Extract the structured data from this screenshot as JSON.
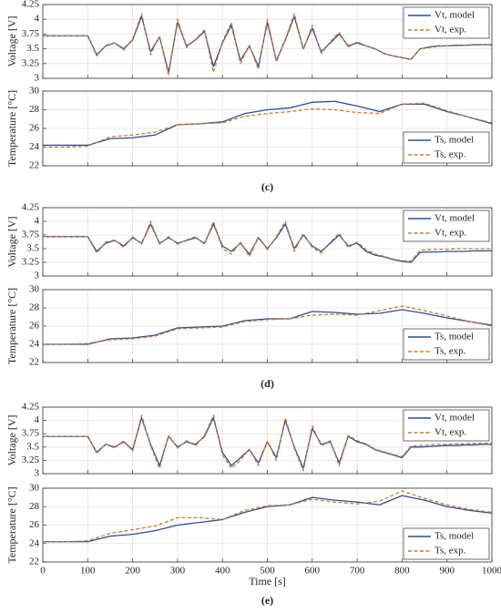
{
  "chart_data": [
    {
      "type": "line",
      "ylabel": "Voltage [V]",
      "ylim": [
        3,
        4.25
      ],
      "yticks": [
        3,
        3.25,
        3.5,
        3.75,
        4,
        4.25
      ],
      "xlim": [
        0,
        1000
      ],
      "xticks": [
        0,
        100,
        200,
        300,
        400,
        500,
        600,
        700,
        800,
        900,
        1000
      ],
      "grid": true,
      "legend": "upper right",
      "x": [
        0,
        20,
        40,
        60,
        80,
        100,
        120,
        140,
        160,
        180,
        200,
        220,
        240,
        260,
        280,
        300,
        320,
        340,
        360,
        380,
        400,
        420,
        440,
        460,
        480,
        500,
        520,
        540,
        560,
        580,
        600,
        620,
        640,
        660,
        680,
        700,
        720,
        740,
        760,
        780,
        800,
        820,
        840,
        860,
        880,
        900,
        920,
        940,
        960,
        980,
        1000
      ],
      "series": [
        {
          "name": "Vt, model",
          "color": "#2b4d9b",
          "style": "solid",
          "values": [
            3.72,
            3.72,
            3.72,
            3.72,
            3.72,
            3.72,
            3.4,
            3.55,
            3.6,
            3.5,
            3.65,
            4.05,
            3.45,
            3.7,
            3.1,
            3.95,
            3.55,
            3.65,
            3.8,
            3.2,
            3.6,
            3.9,
            3.3,
            3.55,
            3.2,
            3.95,
            3.3,
            3.65,
            4.05,
            3.5,
            3.85,
            3.45,
            3.6,
            3.75,
            3.55,
            3.6,
            3.55,
            3.5,
            3.42,
            3.38,
            3.35,
            3.32,
            3.5,
            3.53,
            3.55,
            3.55,
            3.56,
            3.56,
            3.57,
            3.57,
            3.57
          ]
        },
        {
          "name": "Vt, exp.",
          "color": "#d07a2a",
          "style": "dashed",
          "values": [
            3.72,
            3.72,
            3.72,
            3.72,
            3.72,
            3.72,
            3.38,
            3.56,
            3.6,
            3.48,
            3.66,
            4.1,
            3.4,
            3.72,
            3.05,
            4.0,
            3.52,
            3.66,
            3.82,
            3.1,
            3.62,
            3.95,
            3.25,
            3.56,
            3.15,
            4.0,
            3.28,
            3.66,
            4.1,
            3.48,
            3.9,
            3.42,
            3.62,
            3.78,
            3.53,
            3.62,
            3.55,
            3.5,
            3.42,
            3.38,
            3.35,
            3.32,
            3.5,
            3.52,
            3.54,
            3.55,
            3.55,
            3.56,
            3.56,
            3.57,
            3.57
          ]
        }
      ]
    },
    {
      "type": "line",
      "ylabel": "Temperature [°C]",
      "caption": "(c)",
      "ylim": [
        22,
        30
      ],
      "yticks": [
        22,
        24,
        26,
        28,
        30
      ],
      "xlim": [
        0,
        1000
      ],
      "xticks": [
        0,
        100,
        200,
        300,
        400,
        500,
        600,
        700,
        800,
        900,
        1000
      ],
      "grid": true,
      "legend": "lower right",
      "x": [
        0,
        50,
        100,
        150,
        200,
        250,
        300,
        350,
        400,
        450,
        500,
        550,
        600,
        650,
        700,
        750,
        800,
        850,
        900,
        950,
        1000
      ],
      "series": [
        {
          "name": "Ts, model",
          "color": "#2b4d9b",
          "style": "solid",
          "values": [
            24.2,
            24.2,
            24.2,
            24.9,
            25.0,
            25.3,
            26.4,
            26.5,
            26.7,
            27.6,
            28.0,
            28.2,
            28.8,
            28.9,
            28.4,
            27.8,
            28.6,
            28.6,
            27.8,
            27.2,
            26.5
          ]
        },
        {
          "name": "Ts, exp.",
          "color": "#d07a2a",
          "style": "dashed",
          "values": [
            24.0,
            24.0,
            24.1,
            25.1,
            25.3,
            25.6,
            26.4,
            26.5,
            26.6,
            27.3,
            27.6,
            27.8,
            28.1,
            28.0,
            27.7,
            27.6,
            28.6,
            28.7,
            27.9,
            27.2,
            26.6
          ]
        }
      ]
    },
    {
      "type": "line",
      "ylabel": "Voltage [V]",
      "ylim": [
        3,
        4.25
      ],
      "yticks": [
        3,
        3.25,
        3.5,
        3.75,
        4,
        4.25
      ],
      "xlim": [
        0,
        1000
      ],
      "xticks": [
        0,
        100,
        200,
        300,
        400,
        500,
        600,
        700,
        800,
        900,
        1000
      ],
      "grid": true,
      "legend": "upper right",
      "x": [
        0,
        20,
        40,
        60,
        80,
        100,
        120,
        140,
        160,
        180,
        200,
        220,
        240,
        260,
        280,
        300,
        320,
        340,
        360,
        380,
        400,
        420,
        440,
        460,
        480,
        500,
        520,
        540,
        560,
        580,
        600,
        620,
        640,
        660,
        680,
        700,
        720,
        740,
        760,
        780,
        800,
        820,
        840,
        860,
        880,
        900,
        920,
        940,
        960,
        980,
        1000
      ],
      "series": [
        {
          "name": "Vt, model",
          "color": "#2b4d9b",
          "style": "solid",
          "values": [
            3.72,
            3.72,
            3.72,
            3.72,
            3.72,
            3.72,
            3.45,
            3.6,
            3.65,
            3.55,
            3.7,
            3.6,
            3.95,
            3.6,
            3.7,
            3.6,
            3.65,
            3.7,
            3.6,
            3.95,
            3.55,
            3.45,
            3.6,
            3.4,
            3.7,
            3.5,
            3.7,
            3.95,
            3.5,
            3.75,
            3.55,
            3.45,
            3.6,
            3.75,
            3.55,
            3.6,
            3.45,
            3.38,
            3.35,
            3.3,
            3.27,
            3.25,
            3.43,
            3.44,
            3.44,
            3.45,
            3.45,
            3.45,
            3.46,
            3.46,
            3.46
          ]
        },
        {
          "name": "Vt, exp.",
          "color": "#d07a2a",
          "style": "dashed",
          "values": [
            3.72,
            3.72,
            3.72,
            3.72,
            3.72,
            3.72,
            3.42,
            3.62,
            3.66,
            3.52,
            3.72,
            3.58,
            4.0,
            3.58,
            3.72,
            3.58,
            3.66,
            3.72,
            3.58,
            4.0,
            3.5,
            3.4,
            3.62,
            3.35,
            3.72,
            3.48,
            3.72,
            4.0,
            3.45,
            3.78,
            3.52,
            3.42,
            3.62,
            3.78,
            3.52,
            3.62,
            3.48,
            3.4,
            3.36,
            3.31,
            3.28,
            3.27,
            3.47,
            3.48,
            3.49,
            3.49,
            3.5,
            3.5,
            3.5,
            3.5,
            3.5
          ]
        }
      ]
    },
    {
      "type": "line",
      "ylabel": "Temperature [°C]",
      "caption": "(d)",
      "ylim": [
        22,
        30
      ],
      "yticks": [
        22,
        24,
        26,
        28,
        30
      ],
      "xlim": [
        0,
        1000
      ],
      "xticks": [
        0,
        100,
        200,
        300,
        400,
        500,
        600,
        700,
        800,
        900,
        1000
      ],
      "grid": true,
      "legend": "lower right",
      "x": [
        0,
        50,
        100,
        150,
        200,
        250,
        300,
        350,
        400,
        450,
        500,
        550,
        600,
        650,
        700,
        750,
        800,
        850,
        900,
        950,
        1000
      ],
      "series": [
        {
          "name": "Ts, model",
          "color": "#2b4d9b",
          "style": "solid",
          "values": [
            24.0,
            24.0,
            24.0,
            24.6,
            24.7,
            25.0,
            25.8,
            25.9,
            26.0,
            26.6,
            26.8,
            26.8,
            27.6,
            27.5,
            27.3,
            27.4,
            27.8,
            27.4,
            26.9,
            26.5,
            26.1
          ]
        },
        {
          "name": "Ts, exp.",
          "color": "#d07a2a",
          "style": "dashed",
          "values": [
            24.0,
            24.0,
            24.1,
            24.5,
            24.6,
            24.9,
            25.7,
            25.8,
            25.9,
            26.5,
            26.7,
            26.8,
            27.2,
            27.3,
            27.2,
            27.7,
            28.2,
            27.7,
            27.1,
            26.5,
            26.0
          ]
        }
      ]
    },
    {
      "type": "line",
      "ylabel": "Voltage [V]",
      "ylim": [
        3,
        4.25
      ],
      "yticks": [
        3,
        3.25,
        3.5,
        3.75,
        4,
        4.25
      ],
      "xlim": [
        0,
        1000
      ],
      "xticks": [
        0,
        100,
        200,
        300,
        400,
        500,
        600,
        700,
        800,
        900,
        1000
      ],
      "grid": true,
      "legend": "upper right",
      "x": [
        0,
        20,
        40,
        60,
        80,
        100,
        120,
        140,
        160,
        180,
        200,
        220,
        240,
        260,
        280,
        300,
        320,
        340,
        360,
        380,
        400,
        420,
        440,
        460,
        480,
        500,
        520,
        540,
        560,
        580,
        600,
        620,
        640,
        660,
        680,
        700,
        720,
        740,
        760,
        780,
        800,
        820,
        840,
        860,
        880,
        900,
        920,
        940,
        960,
        980,
        1000
      ],
      "series": [
        {
          "name": "Vt, model",
          "color": "#2b4d9b",
          "style": "solid",
          "values": [
            3.7,
            3.7,
            3.7,
            3.7,
            3.7,
            3.7,
            3.4,
            3.55,
            3.5,
            3.6,
            3.45,
            4.05,
            3.55,
            3.15,
            3.7,
            3.5,
            3.6,
            3.55,
            3.7,
            4.05,
            3.4,
            3.15,
            3.3,
            3.45,
            3.2,
            3.6,
            3.3,
            4.0,
            3.5,
            3.1,
            3.85,
            3.55,
            3.6,
            3.2,
            3.7,
            3.6,
            3.55,
            3.45,
            3.4,
            3.35,
            3.3,
            3.5,
            3.5,
            3.51,
            3.52,
            3.53,
            3.53,
            3.54,
            3.54,
            3.55,
            3.55
          ]
        },
        {
          "name": "Vt, exp.",
          "color": "#d07a2a",
          "style": "dashed",
          "values": [
            3.7,
            3.7,
            3.7,
            3.7,
            3.7,
            3.7,
            3.38,
            3.56,
            3.48,
            3.62,
            3.42,
            4.1,
            3.52,
            3.1,
            3.72,
            3.48,
            3.62,
            3.52,
            3.72,
            4.1,
            3.35,
            3.1,
            3.25,
            3.46,
            3.15,
            3.62,
            3.25,
            4.05,
            3.48,
            3.05,
            3.9,
            3.52,
            3.62,
            3.15,
            3.72,
            3.62,
            3.56,
            3.46,
            3.41,
            3.36,
            3.32,
            3.52,
            3.53,
            3.54,
            3.55,
            3.55,
            3.56,
            3.56,
            3.57,
            3.57,
            3.57
          ]
        }
      ]
    },
    {
      "type": "line",
      "ylabel": "Temperature [°C]",
      "xlabel": "Time [s]",
      "caption": "(e)",
      "ylim": [
        22,
        30
      ],
      "yticks": [
        22,
        24,
        26,
        28,
        30
      ],
      "xlim": [
        0,
        1000
      ],
      "xticks": [
        0,
        100,
        200,
        300,
        400,
        500,
        600,
        700,
        800,
        900,
        1000
      ],
      "xticklabels": true,
      "grid": true,
      "legend": "lower right",
      "x": [
        0,
        50,
        100,
        150,
        200,
        250,
        300,
        350,
        400,
        450,
        500,
        550,
        600,
        650,
        700,
        750,
        800,
        850,
        900,
        950,
        1000
      ],
      "series": [
        {
          "name": "Ts, model",
          "color": "#2b4d9b",
          "style": "solid",
          "values": [
            24.2,
            24.2,
            24.2,
            24.8,
            25.0,
            25.4,
            26.0,
            26.3,
            26.6,
            27.4,
            28.0,
            28.2,
            29.0,
            28.7,
            28.5,
            28.2,
            29.2,
            28.7,
            28.0,
            27.6,
            27.3
          ]
        },
        {
          "name": "Ts, exp.",
          "color": "#d07a2a",
          "style": "dashed",
          "values": [
            24.2,
            24.2,
            24.3,
            25.1,
            25.5,
            25.9,
            26.8,
            26.8,
            26.6,
            27.6,
            28.1,
            28.2,
            28.8,
            28.5,
            28.3,
            28.6,
            29.7,
            28.9,
            28.2,
            27.7,
            27.4
          ]
        }
      ]
    }
  ]
}
